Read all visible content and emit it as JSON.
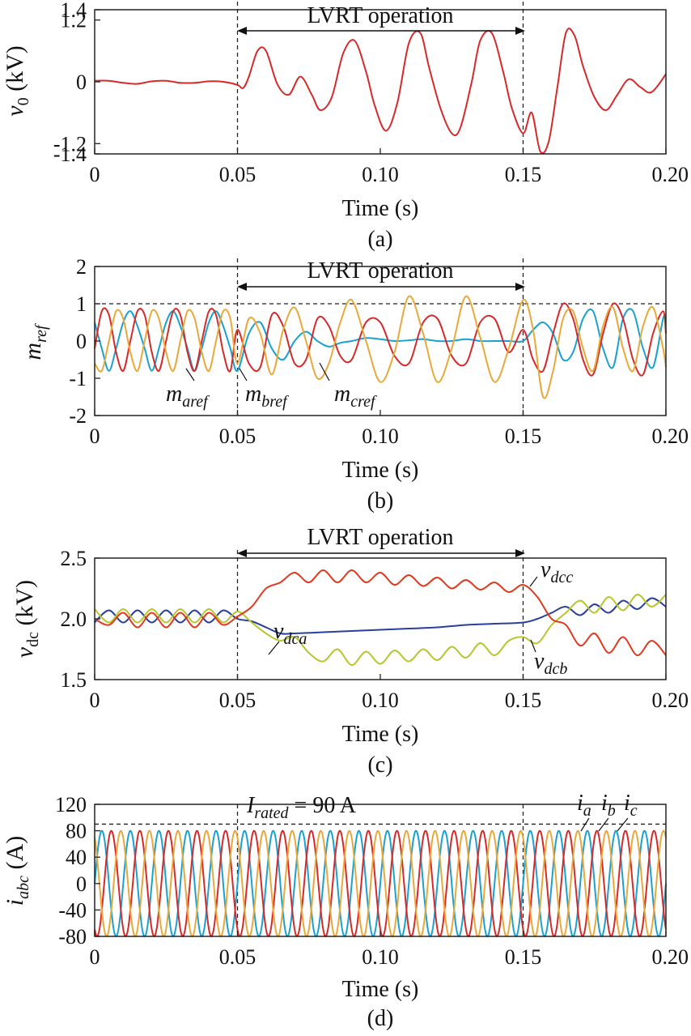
{
  "chart_data": [
    {
      "id": "a",
      "type": "line",
      "sublabel": "(a)",
      "xlabel": "Time (s)",
      "ylabel_symbol": "v",
      "ylabel_sub": "0",
      "ylabel_unit": " (kV)",
      "xlim": [
        0,
        0.2
      ],
      "ylim": [
        -1.4,
        1.4
      ],
      "xticks": [
        0,
        0.05,
        0.1,
        0.15,
        0.2
      ],
      "xtick_labels": [
        "0",
        "0.05",
        "0.10",
        "0.15",
        "0.20"
      ],
      "yticks": [
        1.4,
        1.2,
        0,
        -1.2,
        -1.4
      ],
      "ytick_labels": [
        "1.4",
        "1.2",
        "0",
        "-1.2",
        "-1.4"
      ],
      "vlines": [
        0.05,
        0.15
      ],
      "annotation": "LVRT operation",
      "series": [
        {
          "color": "#d62a2a",
          "x": [
            0,
            0.005,
            0.01,
            0.015,
            0.02,
            0.025,
            0.03,
            0.035,
            0.04,
            0.045,
            0.05,
            0.052,
            0.054,
            0.057,
            0.06,
            0.064,
            0.068,
            0.072,
            0.076,
            0.079,
            0.083,
            0.087,
            0.091,
            0.095,
            0.098,
            0.102,
            0.106,
            0.11,
            0.114,
            0.117,
            0.121,
            0.125,
            0.128,
            0.132,
            0.135,
            0.139,
            0.143,
            0.146,
            0.15,
            0.153,
            0.156,
            0.159,
            0.162,
            0.165,
            0.168,
            0.171,
            0.175,
            0.179,
            0.183,
            0.187,
            0.191,
            0.195,
            0.2
          ],
          "y": [
            0.02,
            0.02,
            -0.02,
            -0.04,
            0.01,
            0.02,
            -0.02,
            -0.02,
            0.01,
            0.0,
            -0.06,
            -0.12,
            0.1,
            0.6,
            0.6,
            -0.05,
            -0.25,
            0.1,
            -0.25,
            -0.55,
            -0.3,
            0.55,
            0.8,
            0.2,
            -0.45,
            -0.95,
            -0.4,
            0.75,
            0.95,
            0.3,
            -0.5,
            -1.0,
            -0.9,
            0.0,
            0.8,
            0.95,
            0.2,
            -0.5,
            -1.0,
            -0.6,
            -1.35,
            -1.15,
            -0.1,
            0.95,
            0.9,
            0.3,
            -0.3,
            -0.55,
            -0.25,
            0.05,
            -0.1,
            -0.2,
            0.15
          ]
        }
      ]
    },
    {
      "id": "b",
      "type": "line",
      "sublabel": "(b)",
      "xlabel": "Time (s)",
      "ylabel_symbol": "m",
      "ylabel_sub": "ref",
      "ylabel_unit": "",
      "xlim": [
        0,
        0.2
      ],
      "ylim": [
        -2,
        2
      ],
      "xticks": [
        0,
        0.05,
        0.1,
        0.15,
        0.2
      ],
      "xtick_labels": [
        "0",
        "0.05",
        "0.10",
        "0.15",
        "0.20"
      ],
      "yticks": [
        2,
        1,
        0,
        -1,
        -2
      ],
      "ytick_labels": [
        "2",
        "1",
        "0",
        "-1",
        "-2"
      ],
      "vlines": [
        0.05,
        0.15
      ],
      "hline": 1,
      "annotation": "LVRT operation",
      "series_labels": [
        {
          "symbol": "m",
          "sub": "aref"
        },
        {
          "symbol": "m",
          "sub": "bref"
        },
        {
          "symbol": "m",
          "sub": "cref"
        }
      ],
      "series": [
        {
          "color": "#1ba1d0",
          "x": [
            0,
            0.0025,
            0.005,
            0.0075,
            0.01,
            0.0125,
            0.015,
            0.0175,
            0.02,
            0.0225,
            0.025,
            0.0275,
            0.03,
            0.0325,
            0.035,
            0.0375,
            0.04,
            0.0425,
            0.045,
            0.0475,
            0.05,
            0.054,
            0.058,
            0.062,
            0.066,
            0.07,
            0.074,
            0.078,
            0.082,
            0.086,
            0.09,
            0.095,
            0.1,
            0.105,
            0.11,
            0.115,
            0.12,
            0.125,
            0.13,
            0.135,
            0.14,
            0.145,
            0.15,
            0.1535,
            0.157,
            0.1605,
            0.164,
            0.1675,
            0.171,
            0.1745,
            0.178,
            0.1815,
            0.185,
            0.1885,
            0.192,
            0.1955,
            0.199,
            0.2
          ],
          "y": [
            0.5,
            -0.2,
            -0.8,
            -0.2,
            0.5,
            0.8,
            0.4,
            -0.2,
            -0.8,
            -0.2,
            0.5,
            0.8,
            0.4,
            -0.2,
            -0.8,
            -0.2,
            0.5,
            0.8,
            0.4,
            -0.2,
            -0.8,
            0.2,
            0.5,
            -0.2,
            -0.5,
            0.0,
            0.25,
            0.0,
            -0.15,
            -0.05,
            0.0,
            0.08,
            0.05,
            0.0,
            0.02,
            0.05,
            0.0,
            0.0,
            0.05,
            0.0,
            0.0,
            0.0,
            0.0,
            0.3,
            0.5,
            0.2,
            -0.5,
            -0.3,
            0.6,
            0.8,
            -0.2,
            -0.7,
            0.6,
            0.8,
            -0.2,
            -0.7,
            0.6,
            0.6
          ]
        },
        {
          "color": "#d62a2a",
          "x": [
            0,
            0.0025,
            0.005,
            0.0075,
            0.01,
            0.0125,
            0.015,
            0.0175,
            0.02,
            0.0225,
            0.025,
            0.0275,
            0.03,
            0.0325,
            0.035,
            0.0375,
            0.04,
            0.0425,
            0.045,
            0.0475,
            0.05,
            0.054,
            0.058,
            0.062,
            0.066,
            0.07,
            0.074,
            0.078,
            0.082,
            0.086,
            0.09,
            0.095,
            0.1,
            0.105,
            0.11,
            0.115,
            0.12,
            0.125,
            0.13,
            0.135,
            0.14,
            0.145,
            0.15,
            0.1535,
            0.157,
            0.1605,
            0.164,
            0.1675,
            0.171,
            0.1745,
            0.178,
            0.1815,
            0.185,
            0.1885,
            0.192,
            0.1955,
            0.199,
            0.2
          ],
          "y": [
            -0.2,
            0.8,
            0.7,
            -0.3,
            -0.8,
            0.0,
            0.8,
            0.7,
            -0.3,
            -0.8,
            0.0,
            0.8,
            0.7,
            -0.3,
            -0.8,
            0.0,
            0.8,
            0.7,
            -0.3,
            -0.8,
            0.3,
            -0.6,
            -0.7,
            0.7,
            0.4,
            -0.6,
            -0.5,
            0.6,
            0.4,
            -0.4,
            -0.5,
            0.5,
            0.5,
            -0.4,
            -0.6,
            0.5,
            0.6,
            -0.4,
            -0.6,
            0.5,
            0.6,
            -0.3,
            0.3,
            -0.5,
            -0.8,
            0.2,
            1.0,
            0.6,
            -0.5,
            -0.9,
            0.2,
            1.0,
            0.6,
            -0.5,
            -0.9,
            0.2,
            0.8,
            0.2
          ]
        },
        {
          "color": "#e9a83a",
          "x": [
            0,
            0.0025,
            0.005,
            0.0075,
            0.01,
            0.0125,
            0.015,
            0.0175,
            0.02,
            0.0225,
            0.025,
            0.0275,
            0.03,
            0.0325,
            0.035,
            0.0375,
            0.04,
            0.0425,
            0.045,
            0.0475,
            0.05,
            0.054,
            0.058,
            0.062,
            0.066,
            0.07,
            0.074,
            0.078,
            0.082,
            0.086,
            0.09,
            0.095,
            0.1,
            0.105,
            0.11,
            0.115,
            0.12,
            0.125,
            0.13,
            0.135,
            0.14,
            0.145,
            0.15,
            0.1535,
            0.157,
            0.1605,
            0.164,
            0.1675,
            0.171,
            0.1745,
            0.178,
            0.1815,
            0.185,
            0.1885,
            0.192,
            0.1955,
            0.199,
            0.2
          ],
          "y": [
            -0.6,
            -0.8,
            0.0,
            0.8,
            0.6,
            -0.3,
            -0.8,
            0.0,
            0.8,
            0.6,
            -0.3,
            -0.8,
            0.0,
            0.8,
            0.6,
            -0.3,
            -0.8,
            0.0,
            0.8,
            0.6,
            -0.6,
            0.6,
            0.2,
            -0.9,
            0.3,
            0.9,
            0.0,
            -1.0,
            -0.6,
            0.5,
            1.1,
            0.0,
            -1.1,
            -0.3,
            1.2,
            0.2,
            -1.1,
            -0.2,
            1.2,
            0.1,
            -1.1,
            -0.2,
            1.1,
            0.3,
            -1.5,
            -0.8,
            0.6,
            0.8,
            -0.2,
            -0.8,
            0.4,
            0.9,
            -0.2,
            -0.8,
            0.4,
            0.9,
            -0.2,
            -0.7
          ]
        }
      ]
    },
    {
      "id": "c",
      "type": "line",
      "sublabel": "(c)",
      "xlabel": "Time (s)",
      "ylabel_symbol": "v",
      "ylabel_sub": "dc",
      "ylabel_unit": " (kV)",
      "xlim": [
        0,
        0.2
      ],
      "ylim": [
        1.5,
        2.5
      ],
      "xticks": [
        0,
        0.05,
        0.1,
        0.15,
        0.2
      ],
      "xtick_labels": [
        "0",
        "0.05",
        "0.10",
        "0.15",
        "0.20"
      ],
      "yticks": [
        2.5,
        2.0,
        1.5
      ],
      "ytick_labels": [
        "2.5",
        "2.0",
        "1.5"
      ],
      "vlines": [
        0.05,
        0.15
      ],
      "annotation": "LVRT operation",
      "series_labels": [
        {
          "symbol": "v",
          "sub": "dca"
        },
        {
          "symbol": "v",
          "sub": "dcb"
        },
        {
          "symbol": "v",
          "sub": "dcc"
        }
      ],
      "series": [
        {
          "color": "#2a3f9e",
          "x": [
            0,
            0.005,
            0.01,
            0.015,
            0.02,
            0.025,
            0.03,
            0.035,
            0.04,
            0.045,
            0.05,
            0.055,
            0.06,
            0.065,
            0.07,
            0.08,
            0.09,
            0.1,
            0.11,
            0.12,
            0.13,
            0.14,
            0.15,
            0.155,
            0.16,
            0.165,
            0.17,
            0.175,
            0.18,
            0.185,
            0.19,
            0.195,
            0.2
          ],
          "y": [
            1.97,
            2.07,
            1.97,
            2.07,
            1.97,
            2.07,
            1.97,
            2.07,
            1.97,
            2.07,
            2.0,
            1.98,
            1.93,
            1.88,
            1.88,
            1.89,
            1.9,
            1.91,
            1.92,
            1.93,
            1.95,
            1.96,
            1.97,
            2.0,
            2.05,
            2.1,
            2.03,
            2.12,
            2.05,
            2.15,
            2.08,
            2.17,
            2.1
          ]
        },
        {
          "color": "#b7c62c",
          "x": [
            0,
            0.005,
            0.01,
            0.015,
            0.02,
            0.025,
            0.03,
            0.035,
            0.04,
            0.045,
            0.05,
            0.055,
            0.06,
            0.065,
            0.07,
            0.075,
            0.08,
            0.085,
            0.09,
            0.095,
            0.1,
            0.105,
            0.11,
            0.115,
            0.12,
            0.125,
            0.13,
            0.135,
            0.14,
            0.145,
            0.15,
            0.155,
            0.16,
            0.165,
            0.17,
            0.175,
            0.18,
            0.185,
            0.19,
            0.195,
            0.2
          ],
          "y": [
            2.08,
            1.97,
            2.08,
            1.97,
            2.08,
            1.97,
            2.08,
            1.97,
            2.08,
            1.97,
            2.06,
            1.97,
            1.88,
            1.82,
            1.85,
            1.72,
            1.65,
            1.75,
            1.62,
            1.73,
            1.63,
            1.74,
            1.65,
            1.75,
            1.66,
            1.77,
            1.68,
            1.8,
            1.7,
            1.82,
            1.85,
            1.8,
            1.95,
            2.05,
            2.15,
            2.05,
            2.18,
            2.07,
            2.2,
            2.1,
            2.2
          ]
        },
        {
          "color": "#e03a1e",
          "x": [
            0,
            0.005,
            0.01,
            0.015,
            0.02,
            0.025,
            0.03,
            0.035,
            0.04,
            0.045,
            0.05,
            0.055,
            0.06,
            0.065,
            0.07,
            0.075,
            0.08,
            0.085,
            0.09,
            0.095,
            0.1,
            0.105,
            0.11,
            0.115,
            0.12,
            0.125,
            0.13,
            0.135,
            0.14,
            0.145,
            0.15,
            0.155,
            0.16,
            0.165,
            0.17,
            0.175,
            0.18,
            0.185,
            0.19,
            0.195,
            0.2
          ],
          "y": [
            2.0,
            1.95,
            2.05,
            1.93,
            2.05,
            1.93,
            2.05,
            1.93,
            2.05,
            1.95,
            2.02,
            2.1,
            2.25,
            2.3,
            2.38,
            2.3,
            2.4,
            2.3,
            2.4,
            2.3,
            2.38,
            2.28,
            2.36,
            2.27,
            2.34,
            2.25,
            2.32,
            2.24,
            2.3,
            2.22,
            2.28,
            2.18,
            2.0,
            1.95,
            1.78,
            1.88,
            1.72,
            1.85,
            1.7,
            1.82,
            1.7
          ]
        }
      ]
    },
    {
      "id": "d",
      "type": "line",
      "sublabel": "(d)",
      "xlabel": "Time (s)",
      "ylabel_symbol": "i",
      "ylabel_sub": "abc",
      "ylabel_unit": " (A)",
      "xlim": [
        0,
        0.2
      ],
      "ylim": [
        -80,
        120
      ],
      "xticks": [
        0,
        0.05,
        0.1,
        0.15,
        0.2
      ],
      "xtick_labels": [
        "0",
        "0.05",
        "0.10",
        "0.15",
        "0.20"
      ],
      "yticks": [
        120,
        80,
        40,
        0,
        -40,
        -80
      ],
      "ytick_labels": [
        "120",
        "80",
        "40",
        "0",
        "-40",
        "-80"
      ],
      "vlines": [
        0.05,
        0.15
      ],
      "hline": 90,
      "annotation_symbol": "I",
      "annotation_sub": "rated",
      "annotation_text": " = 90 A",
      "series_labels": [
        {
          "symbol": "i",
          "sub": "a"
        },
        {
          "symbol": "i",
          "sub": "b"
        },
        {
          "symbol": "i",
          "sub": "c"
        }
      ],
      "amplitude": 80,
      "frequency_hz": 100,
      "series": [
        {
          "color": "#1ba1d0",
          "phase_deg": 0
        },
        {
          "color": "#d62a2a",
          "phase_deg": -120
        },
        {
          "color": "#e9a83a",
          "phase_deg": 120
        }
      ]
    }
  ]
}
